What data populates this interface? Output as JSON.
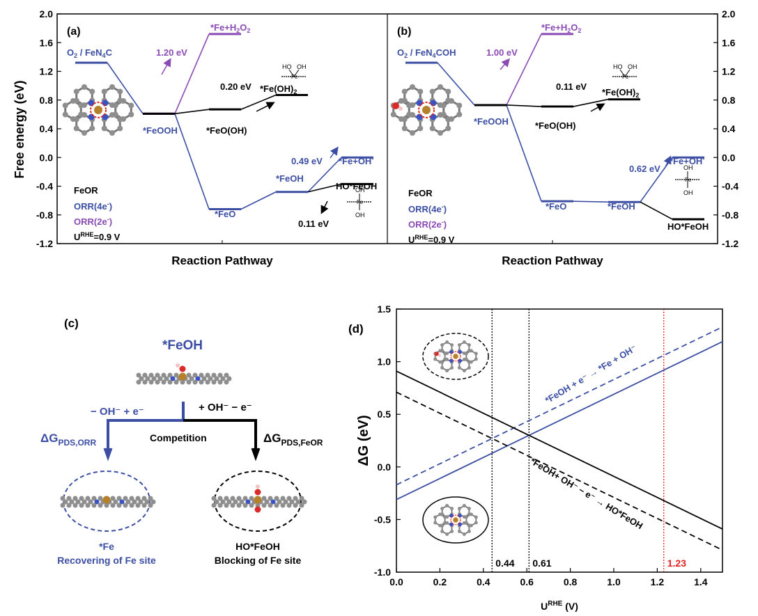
{
  "colors": {
    "blue": "#3b4ea3",
    "purple": "#8a4ab4",
    "black": "#000000",
    "red": "#e32020",
    "fe": "#b5812a",
    "n": "#3a52c4",
    "c": "#8e8e8e",
    "o": "#d92b2b"
  },
  "panel_ab": {
    "ylabel": "Free energy (eV)",
    "xlabel": "Reaction Pathway",
    "ylim": [
      -1.2,
      2.0
    ],
    "yticks": [
      "2.0",
      "1.6",
      "1.2",
      "0.8",
      "0.4",
      "0.0",
      "-0.4",
      "-0.8",
      "-1.2"
    ],
    "yticks_right": [
      "2.0",
      "1.6",
      "1.2",
      "0.8",
      "0.4",
      "0.0",
      "-0.4",
      "-0.8",
      "-1.2"
    ]
  },
  "chart_data": [
    {
      "type": "line",
      "panel": "a",
      "label": "(a)",
      "title": "O2 / FeN4C",
      "xlabel": "Reaction Pathway",
      "ylabel": "Free energy (eV)",
      "ylim": [
        -1.2,
        2.0
      ],
      "legend": [
        "FeOR",
        "ORR(4e-)",
        "ORR(2e-)",
        "URHE=0.9 V"
      ],
      "series": [
        {
          "name": "ORR(4e-)",
          "color": "#3b4ea3",
          "steps": [
            {
              "step": 0,
              "value": 1.32,
              "label": "O2 / FeN4C"
            },
            {
              "step": 1,
              "value": 0.61,
              "label": "*FeOOH"
            },
            {
              "step": 2,
              "value": -0.72,
              "label": "*FeO"
            },
            {
              "step": 3,
              "value": -0.48,
              "label": "*FeOH"
            },
            {
              "step": 4,
              "value": 0.0,
              "label": "*Fe+OH-"
            }
          ]
        },
        {
          "name": "ORR(2e-)",
          "color": "#8a4ab4",
          "steps": [
            {
              "step": 1,
              "value": 0.61,
              "label": "*FeOOH"
            },
            {
              "step": 2,
              "value": 1.72,
              "label": "*Fe+H2O2"
            }
          ]
        },
        {
          "name": "FeOR",
          "color": "#000000",
          "steps": [
            {
              "step": 1,
              "value": 0.61,
              "label": "*FeOOH"
            },
            {
              "step": 2,
              "value": 0.67,
              "label": "*FeO(OH)"
            },
            {
              "step": 3,
              "value": 0.87,
              "label": "*Fe(OH)2"
            },
            {
              "step": 4,
              "value": -0.37,
              "label": "HO*FeOH",
              "from_step": 3,
              "from_value": -0.48
            }
          ]
        }
      ],
      "annotations": [
        "1.20 eV",
        "0.20 eV",
        "0.49 eV",
        "0.11 eV"
      ]
    },
    {
      "type": "line",
      "panel": "b",
      "label": "(b)",
      "title": "O2 / FeN4COH",
      "xlabel": "Reaction Pathway",
      "ylim": [
        -1.2,
        2.0
      ],
      "legend": [
        "FeOR",
        "ORR(4e-)",
        "ORR(2e-)",
        "URHE=0.9 V"
      ],
      "series": [
        {
          "name": "ORR(4e-)",
          "color": "#3b4ea3",
          "steps": [
            {
              "step": 0,
              "value": 1.32,
              "label": "O2 / FeN4COH"
            },
            {
              "step": 1,
              "value": 0.73,
              "label": "*FeOOH"
            },
            {
              "step": 2,
              "value": -0.61,
              "label": "*FeO"
            },
            {
              "step": 3,
              "value": -0.62,
              "label": "*FeOH"
            },
            {
              "step": 4,
              "value": 0.0,
              "label": "*Fe+OH-"
            }
          ]
        },
        {
          "name": "ORR(2e-)",
          "color": "#8a4ab4",
          "steps": [
            {
              "step": 1,
              "value": 0.73,
              "label": "*FeOOH"
            },
            {
              "step": 2,
              "value": 1.72,
              "label": "*Fe+H2O2"
            }
          ]
        },
        {
          "name": "FeOR",
          "color": "#000000",
          "steps": [
            {
              "step": 1,
              "value": 0.73,
              "label": "*FeOOH"
            },
            {
              "step": 2,
              "value": 0.71,
              "label": "*FeO(OH)"
            },
            {
              "step": 3,
              "value": 0.81,
              "label": "*Fe(OH)2"
            },
            {
              "step": 4,
              "value": -0.86,
              "label": "HO*FeOH",
              "from_step": 3,
              "from_value": -0.62
            }
          ]
        }
      ],
      "annotations": [
        "1.00 eV",
        "0.11 eV",
        "0.62 eV"
      ]
    },
    {
      "type": "line",
      "panel": "d",
      "label": "(d)",
      "xlabel": "URHE (V)",
      "ylabel": "ΔG (eV)",
      "xlim": [
        0.0,
        1.5
      ],
      "ylim": [
        -1.0,
        1.5
      ],
      "xticks": [
        "0.0",
        "0.2",
        "0.4",
        "0.6",
        "0.8",
        "1.0",
        "1.2",
        "1.4"
      ],
      "yticks": [
        "1.5",
        "1.0",
        "0.5",
        "0.0",
        "-0.5",
        "-1.0"
      ],
      "series": [
        {
          "name": "*FeOH + e- → *Fe + OH- (solid)",
          "color": "#3b4ea3",
          "style": "solid",
          "x": [
            0.0,
            1.5
          ],
          "y": [
            -0.31,
            1.19
          ]
        },
        {
          "name": "*FeOH + e- → *Fe + OH- (dashed)",
          "color": "#3b4ea3",
          "style": "dashed",
          "x": [
            0.0,
            1.5
          ],
          "y": [
            -0.17,
            1.33
          ]
        },
        {
          "name": "*FeOH+ OH- - e- → HO*FeOH (solid)",
          "color": "#000000",
          "style": "solid",
          "x": [
            0.0,
            1.5
          ],
          "y": [
            0.91,
            -0.59
          ]
        },
        {
          "name": "*FeOH+ OH- - e- → HO*FeOH (dashed)",
          "color": "#000000",
          "style": "dashed",
          "x": [
            0.0,
            1.5
          ],
          "y": [
            0.71,
            -0.79
          ]
        }
      ],
      "vlines": [
        {
          "x": 0.44,
          "label": "0.44",
          "color": "#000000"
        },
        {
          "x": 0.61,
          "label": "0.61",
          "color": "#000000"
        },
        {
          "x": 1.23,
          "label": "1.23",
          "color": "#e32020"
        }
      ],
      "line_labels": [
        "*FeOH + e⁻ → *Fe + OH⁻",
        "*FeOH+ OH⁻ − e⁻ → HO*FeOH"
      ]
    }
  ],
  "panel_c": {
    "label": "(c)",
    "title": "*FeOH",
    "left_step": "− OH⁻ + e⁻",
    "right_step": "+ OH⁻ − e⁻",
    "competition": "Competition",
    "dg_orr": "ΔG",
    "dg_orr_sub": "PDS,ORR",
    "dg_feor": "ΔG",
    "dg_feor_sub": "PDS,FeOR",
    "left_name": "*Fe",
    "left_desc": "Recovering of Fe site",
    "right_name": "HO*FeOH",
    "right_desc": "Blocking of Fe site"
  },
  "panel_a_text": {
    "label": "(a)",
    "title_main": "O",
    "title_sub1": "2",
    "title_rest": " / FeN",
    "title_sub2": "4",
    "title_end": "C",
    "feooh": "*FeOOH",
    "feo_oh": "*FeO(OH)",
    "feo": "*FeO",
    "feoh": "*FeOH",
    "fe_oh_minus": "*Fe+OH",
    "minus": "-",
    "fe_h2o2_a": "*Fe+H",
    "fe_h2o2_sub1": "2",
    "fe_h2o2_b": "O",
    "fe_h2o2_sub2": "2",
    "fe_oh2": "*Fe(OH)",
    "fe_oh2_sub": "2",
    "hofeoh": "HO*FeOH",
    "ann_120": "1.20 eV",
    "ann_020": "0.20 eV",
    "ann_049": "0.49 eV",
    "ann_011": "0.11 eV",
    "leg_feor": "FeOR",
    "leg_4e": "ORR(4e",
    "leg_2e": "ORR(2e",
    "leg_close": ")",
    "leg_u": "U",
    "leg_u_sup": "RHE",
    "leg_u_val": "=0.9 V"
  },
  "panel_b_text": {
    "label": "(b)",
    "title_main": "O",
    "title_sub1": "2",
    "title_rest": " / FeN",
    "title_sub2": "4",
    "title_end": "COH",
    "feooh": "*FeOOH",
    "feo_oh": "*FeO(OH)",
    "feo": "*FeO",
    "feoh": "*FeOH",
    "fe_oh_minus": "*Fe+OH",
    "minus": "-",
    "fe_h2o2_a": "*Fe+H",
    "fe_h2o2_sub1": "2",
    "fe_h2o2_b": "O",
    "fe_h2o2_sub2": "2",
    "fe_oh2": "*Fe(OH)",
    "fe_oh2_sub": "2",
    "hofeoh": "HO*FeOH",
    "ann_100": "1.00 eV",
    "ann_011": "0.11 eV",
    "ann_062": "0.62 eV",
    "leg_feor": "FeOR",
    "leg_4e": "ORR(4e",
    "leg_2e": "ORR(2e",
    "leg_close": ")",
    "leg_u": "U",
    "leg_u_sup": "RHE",
    "leg_u_val": "=0.9 V"
  },
  "insets": {
    "ho": "HO",
    "oh": "OH",
    "fe": "Fe"
  },
  "panel_d_text": {
    "xlabel_u": "U",
    "xlabel_sup": "RHE",
    "xlabel_end": " (V)",
    "ylabel": "ΔG (eV)"
  }
}
